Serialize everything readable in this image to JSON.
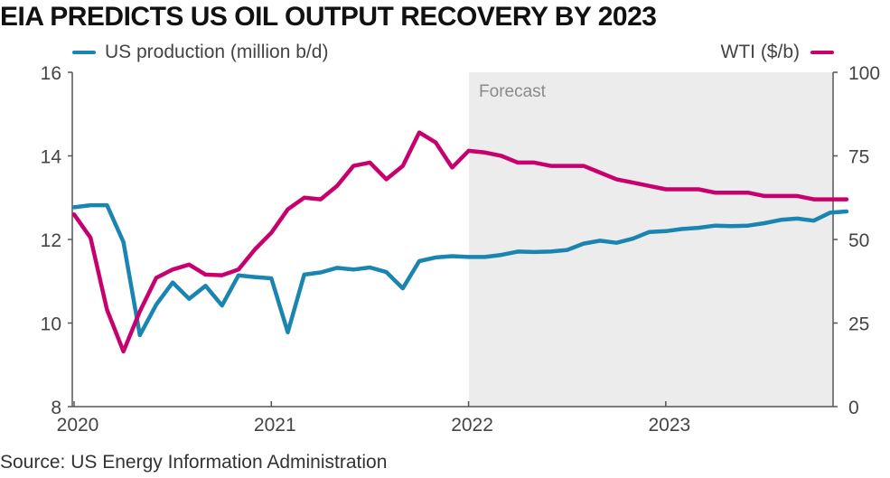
{
  "title": "EIA PREDICTS US OIL OUTPUT RECOVERY BY 2023",
  "source": "Source: US Energy Information Administration",
  "colors": {
    "production": "#1a85b0",
    "wti": "#c8006e",
    "forecast_band": "#ececec",
    "axis": "#555555"
  },
  "chart_data": {
    "type": "line",
    "title": "EIA PREDICTS US OIL OUTPUT RECOVERY BY 2023",
    "x_ticks": [
      "2020",
      "2021",
      "2022",
      "2023"
    ],
    "y_left": {
      "label": "",
      "range": [
        8,
        16
      ],
      "ticks": [
        "8",
        "10",
        "12",
        "14",
        "16"
      ]
    },
    "y_right": {
      "label": "",
      "range": [
        0,
        100
      ],
      "ticks": [
        "0",
        "25",
        "50",
        "75",
        "100"
      ]
    },
    "grid": false,
    "legend_placement": "top",
    "forecast": {
      "label": "Forecast",
      "start": "2022-01"
    },
    "x": [
      "2020-01",
      "2020-02",
      "2020-03",
      "2020-04",
      "2020-05",
      "2020-06",
      "2020-07",
      "2020-08",
      "2020-09",
      "2020-10",
      "2020-11",
      "2020-12",
      "2021-01",
      "2021-02",
      "2021-03",
      "2021-04",
      "2021-05",
      "2021-06",
      "2021-07",
      "2021-08",
      "2021-09",
      "2021-10",
      "2021-11",
      "2021-12",
      "2022-01",
      "2022-02",
      "2022-03",
      "2022-04",
      "2022-05",
      "2022-06",
      "2022-07",
      "2022-08",
      "2022-09",
      "2022-10",
      "2022-11",
      "2022-12",
      "2023-01",
      "2023-02",
      "2023-03",
      "2023-04",
      "2023-05",
      "2023-06",
      "2023-07",
      "2023-08",
      "2023-09",
      "2023-10",
      "2023-11",
      "2023-12"
    ],
    "series": [
      {
        "name": "US production (million b/d)",
        "axis": "left",
        "values": [
          12.77,
          12.82,
          12.82,
          11.94,
          9.71,
          10.44,
          10.97,
          10.58,
          10.89,
          10.42,
          11.14,
          11.1,
          11.07,
          9.78,
          11.16,
          11.21,
          11.32,
          11.28,
          11.33,
          11.22,
          10.83,
          11.48,
          11.57,
          11.6,
          11.58,
          11.58,
          11.63,
          11.71,
          11.7,
          11.71,
          11.75,
          11.9,
          11.97,
          11.92,
          12.02,
          12.18,
          12.2,
          12.25,
          12.28,
          12.33,
          12.32,
          12.33,
          12.39,
          12.47,
          12.5,
          12.45,
          12.64,
          12.67
        ]
      },
      {
        "name": "WTI ($/b)",
        "axis": "right",
        "values": [
          57.5,
          50.5,
          29.0,
          16.5,
          28.5,
          38.5,
          41.0,
          42.5,
          39.5,
          39.3,
          41.0,
          47.0,
          52.0,
          59.0,
          62.5,
          62.0,
          66.0,
          72.0,
          73.0,
          68.0,
          72.0,
          82.0,
          79.0,
          71.5,
          76.5,
          76.0,
          75.0,
          73.0,
          73.0,
          72.0,
          72.0,
          72.0,
          70.0,
          68.0,
          67.0,
          66.0,
          65.0,
          65.0,
          65.0,
          64.0,
          64.0,
          64.0,
          63.0,
          63.0,
          63.0,
          62.0,
          62.0,
          62.0
        ]
      }
    ]
  }
}
